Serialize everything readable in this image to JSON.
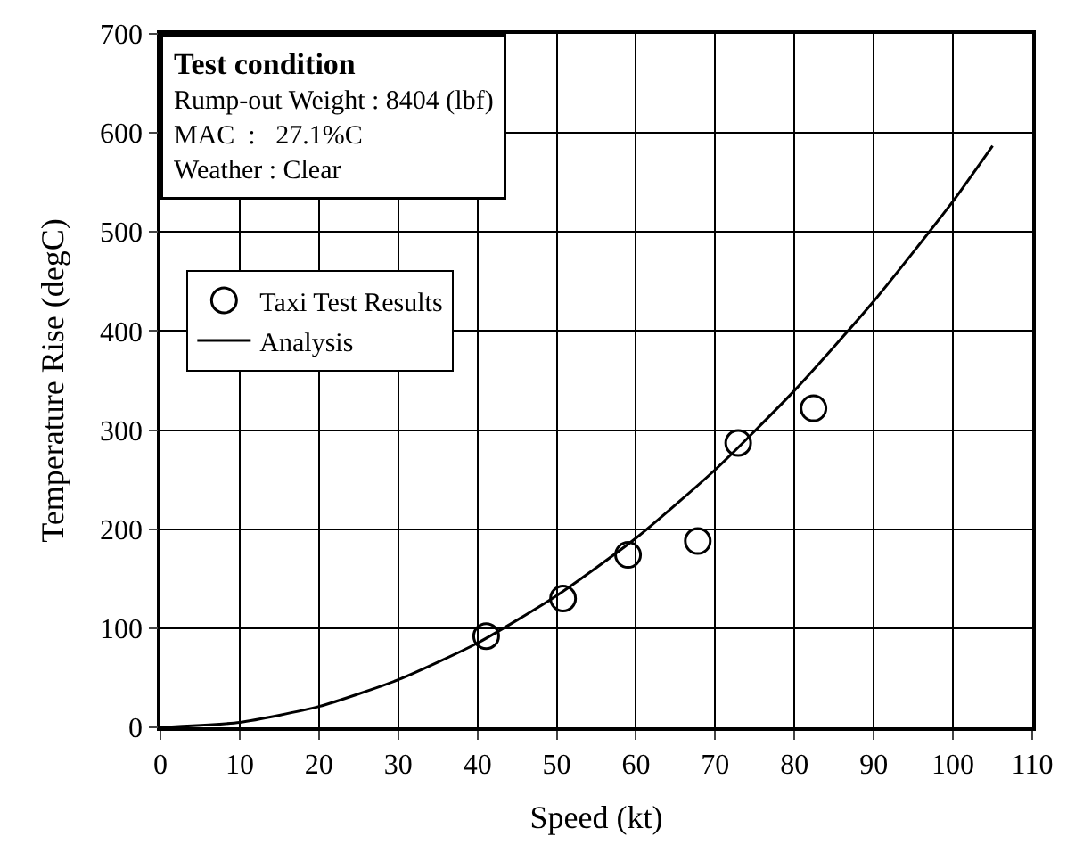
{
  "chart_data": {
    "type": "scatter",
    "xlabel": "Speed (kt)",
    "ylabel": "Temperature Rise (degC)",
    "xlim": [
      0,
      110
    ],
    "xticks": [
      0,
      10,
      20,
      30,
      40,
      50,
      60,
      70,
      80,
      90,
      100,
      110
    ],
    "ylim": [
      0,
      700
    ],
    "yticks": [
      0,
      100,
      200,
      300,
      400,
      500,
      600,
      700
    ],
    "grid": true,
    "legend": "top left",
    "series": [
      {
        "name": "Taxi Test Results",
        "marker": "circle",
        "color": "#000000",
        "x": [
          41.1,
          50.8,
          59.0,
          67.8,
          72.9,
          82.4
        ],
        "values": [
          92,
          130,
          174,
          188,
          287,
          322
        ]
      },
      {
        "name": "Analysis",
        "type": "line",
        "line_style": "solid",
        "color": "#000000",
        "x": [
          0,
          10,
          20,
          30,
          40,
          50,
          60,
          70,
          80,
          90,
          100,
          105
        ],
        "values": [
          0,
          5,
          21,
          48,
          85,
          133,
          191,
          260,
          340,
          430,
          531,
          587
        ]
      }
    ],
    "annotations": [
      "Test condition",
      "Rump-out Weight : 8404 (lbf)",
      "MAC  :   27.1%C",
      "Weather : Clear"
    ]
  }
}
